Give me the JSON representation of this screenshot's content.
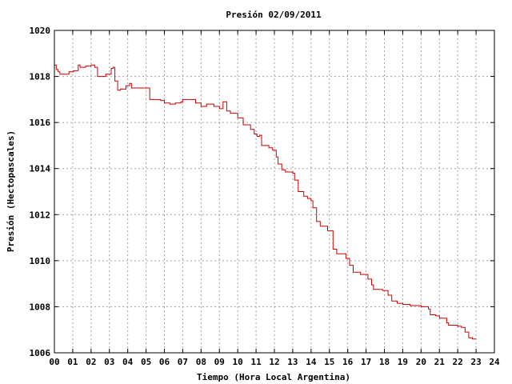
{
  "chart_data": {
    "type": "line",
    "title": "Presión 02/09/2011",
    "xlabel": "Tiempo (Hora Local Argentina)",
    "ylabel": "Presión (Hectopascales)",
    "xlim": [
      0,
      24
    ],
    "ylim": [
      1006,
      1020
    ],
    "x_tick_labels": [
      "00",
      "01",
      "02",
      "03",
      "04",
      "05",
      "06",
      "07",
      "08",
      "09",
      "10",
      "11",
      "12",
      "13",
      "14",
      "15",
      "16",
      "17",
      "18",
      "19",
      "20",
      "21",
      "22",
      "23",
      "24"
    ],
    "y_ticks": [
      1006,
      1008,
      1010,
      1012,
      1014,
      1016,
      1018,
      1020
    ],
    "grid": true,
    "line_color": "#cc0000",
    "series": [
      {
        "x": [
          0.0,
          0.1,
          0.2,
          0.3,
          0.5,
          0.8,
          1.05,
          1.3,
          1.4,
          1.7,
          2.0,
          2.2,
          2.35,
          2.8,
          3.1,
          3.2,
          3.3,
          3.45,
          3.6,
          3.9,
          4.1,
          4.2,
          4.6,
          5.0,
          5.2,
          5.4,
          5.8,
          6.0,
          6.3,
          6.6,
          6.9,
          7.0,
          7.4,
          7.7,
          8.0,
          8.3,
          8.7,
          9.0,
          9.2,
          9.4,
          9.6,
          10.0,
          10.3,
          10.7,
          10.9,
          11.05,
          11.2,
          11.3,
          11.7,
          11.9,
          12.1,
          12.2,
          12.4,
          12.6,
          13.0,
          13.1,
          13.3,
          13.6,
          13.8,
          14.0,
          14.1,
          14.3,
          14.5,
          14.9,
          15.2,
          15.4,
          15.9,
          16.1,
          16.3,
          16.7,
          17.1,
          17.3,
          17.4,
          17.9,
          18.2,
          18.4,
          18.7,
          19.0,
          19.4,
          20.0,
          20.4,
          20.5,
          20.8,
          21.0,
          21.4,
          21.5,
          22.0,
          22.2,
          22.4,
          22.6,
          22.8,
          23.0
        ],
        "y": [
          1018.5,
          1018.3,
          1018.2,
          1018.1,
          1018.1,
          1018.2,
          1018.25,
          1018.5,
          1018.4,
          1018.45,
          1018.5,
          1018.4,
          1018.0,
          1018.1,
          1018.35,
          1018.4,
          1017.8,
          1017.4,
          1017.45,
          1017.6,
          1017.7,
          1017.5,
          1017.5,
          1017.5,
          1017.0,
          1017.0,
          1016.95,
          1016.85,
          1016.8,
          1016.85,
          1016.9,
          1017.0,
          1017.0,
          1016.85,
          1016.7,
          1016.8,
          1016.7,
          1016.6,
          1016.9,
          1016.5,
          1016.4,
          1016.2,
          1015.9,
          1015.7,
          1015.5,
          1015.4,
          1015.45,
          1015.0,
          1014.9,
          1014.8,
          1014.5,
          1014.2,
          1013.95,
          1013.85,
          1013.8,
          1013.5,
          1013.0,
          1012.8,
          1012.7,
          1012.6,
          1012.3,
          1011.7,
          1011.5,
          1011.3,
          1010.5,
          1010.3,
          1010.1,
          1009.8,
          1009.5,
          1009.4,
          1009.2,
          1008.95,
          1008.75,
          1008.7,
          1008.5,
          1008.25,
          1008.15,
          1008.1,
          1008.05,
          1008.0,
          1007.9,
          1007.65,
          1007.6,
          1007.5,
          1007.3,
          1007.2,
          1007.15,
          1007.1,
          1006.9,
          1006.65,
          1006.6,
          1006.6
        ]
      }
    ]
  }
}
